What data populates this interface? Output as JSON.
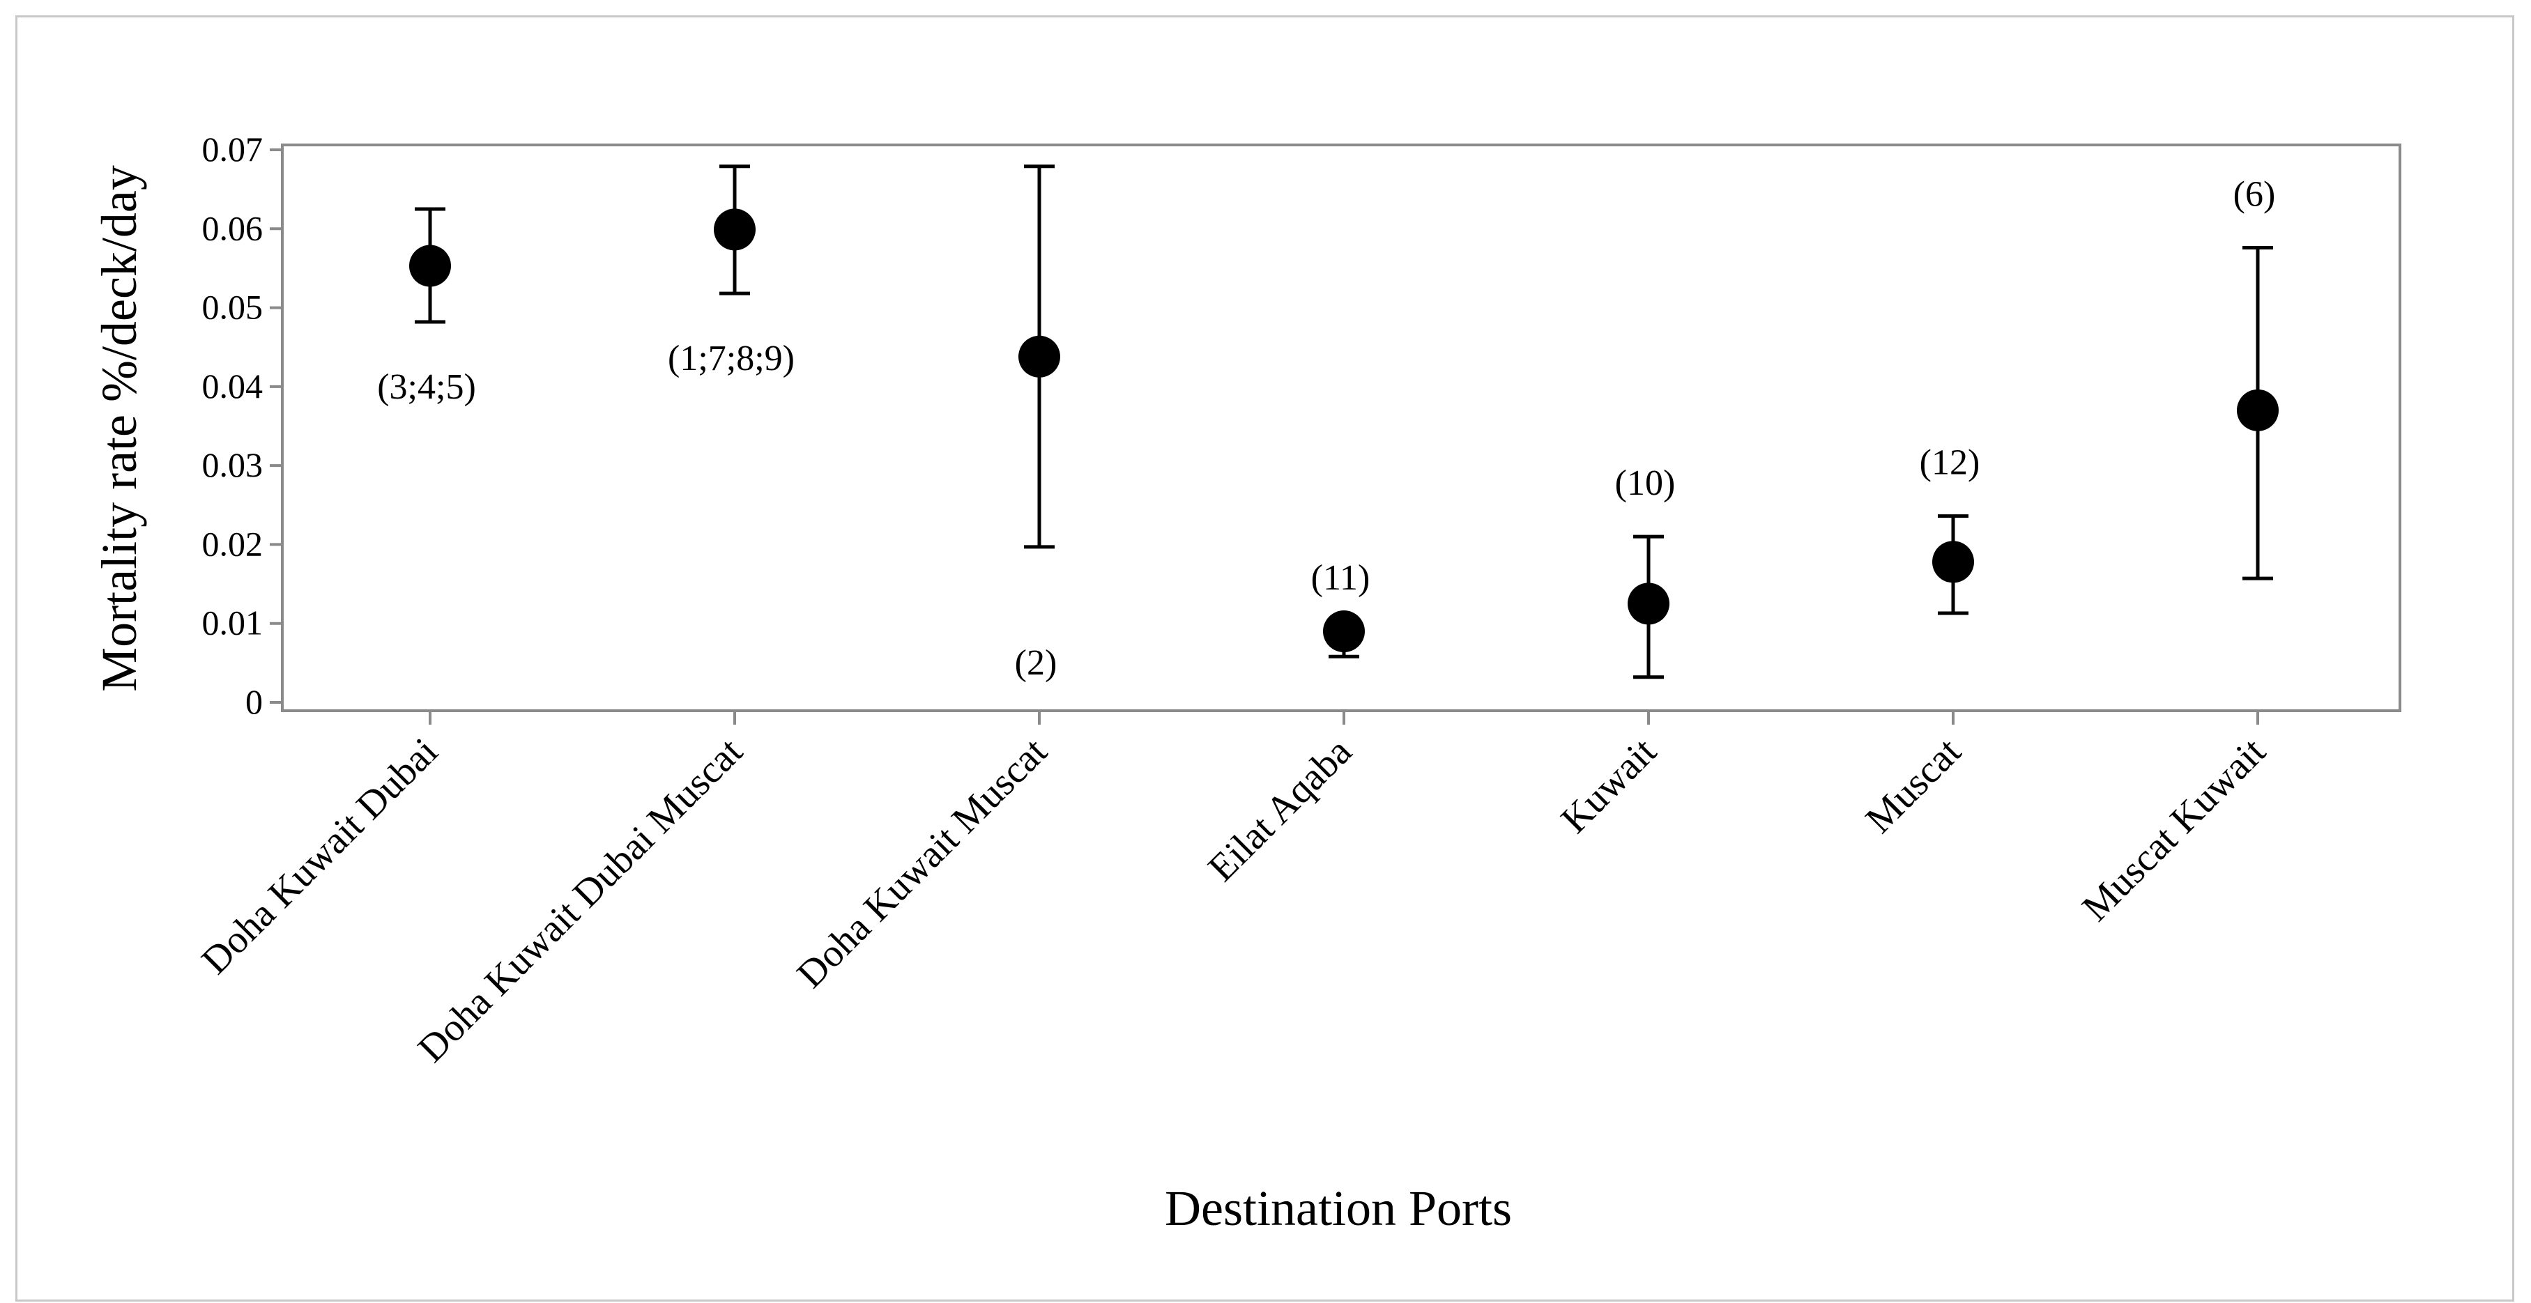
{
  "chart_data": {
    "type": "scatter",
    "subtype": "error-bar",
    "title": "",
    "xlabel": "Destination Ports",
    "ylabel": "Mortality rate %/deck/day",
    "ylim": [
      0,
      0.072
    ],
    "yticks": [
      "0",
      "0.01",
      "0.02",
      "0.03",
      "0.04",
      "0.05",
      "0.06",
      "0.07"
    ],
    "ytick_values": [
      0,
      0.01,
      0.02,
      0.03,
      0.04,
      0.05,
      0.06,
      0.07
    ],
    "grid": false,
    "legend": "none",
    "marker_color": "#000000",
    "categories": [
      "Doha Kuwait Dubai",
      "Doha Kuwait Dubai Muscat",
      "Doha Kuwait Muscat",
      "Eilat Aqaba",
      "Kuwait",
      "Muscat",
      "Muscat Kuwait"
    ],
    "points": [
      {
        "category": "Doha Kuwait Dubai",
        "value": 0.0553,
        "lower": 0.0482,
        "upper": 0.0625,
        "annotation": "(3;4;5)",
        "annotation_position": "below"
      },
      {
        "category": "Doha Kuwait Dubai Muscat",
        "value": 0.0599,
        "lower": 0.0518,
        "upper": 0.0679,
        "annotation": "(1;7;8;9)",
        "annotation_position": "below"
      },
      {
        "category": "Doha Kuwait Muscat",
        "value": 0.0438,
        "lower": 0.0197,
        "upper": 0.0679,
        "annotation": "(2)",
        "annotation_position": "below"
      },
      {
        "category": "Eilat Aqaba",
        "value": 0.009,
        "lower": 0.0058,
        "upper": 0.009,
        "annotation": "(11)",
        "annotation_position": "above"
      },
      {
        "category": "Kuwait",
        "value": 0.0125,
        "lower": 0.0032,
        "upper": 0.021,
        "annotation": "(10)",
        "annotation_position": "above"
      },
      {
        "category": "Muscat",
        "value": 0.0178,
        "lower": 0.0113,
        "upper": 0.0236,
        "annotation": "(12)",
        "annotation_position": "above"
      },
      {
        "category": "Muscat Kuwait",
        "value": 0.037,
        "lower": 0.0157,
        "upper": 0.0576,
        "annotation": "(6)",
        "annotation_position": "above"
      }
    ]
  }
}
